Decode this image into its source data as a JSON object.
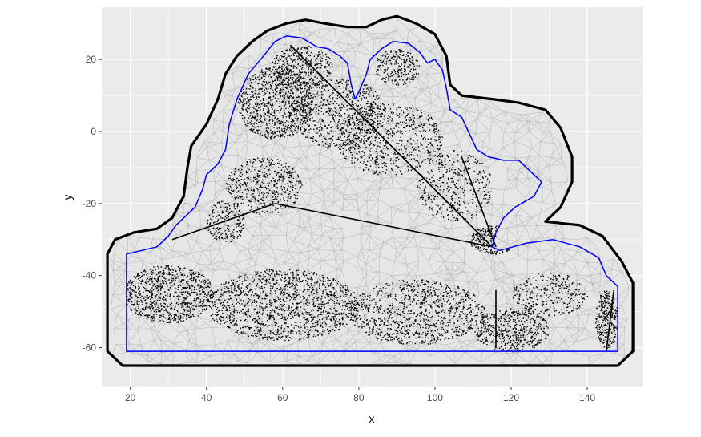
{
  "chart_data": {
    "type": "scatter",
    "title": "",
    "xlabel": "x",
    "ylabel": "y",
    "xlim": [
      12.5,
      154.5
    ],
    "ylim": [
      -71,
      34.5
    ],
    "x_ticks": [
      20,
      40,
      60,
      80,
      100,
      120,
      140
    ],
    "y_ticks": [
      20,
      0,
      -20,
      -40,
      -60
    ],
    "x_tick_labels": [
      "20",
      "40",
      "60",
      "80",
      "100",
      "120",
      "140"
    ],
    "y_tick_labels": [
      "20",
      "0",
      "-20",
      "-40",
      "-60"
    ],
    "grid": true,
    "legend": "none",
    "colors": {
      "panel": "#ebebeb",
      "grid": "#ffffff",
      "mesh_fill": "#e6e6e6",
      "mesh_edges": "#bdbdbd",
      "outer_boundary": "#000000",
      "inner_boundary": "#0000ff",
      "points": "#000000"
    },
    "layers": [
      {
        "name": "mesh",
        "kind": "triangulation"
      },
      {
        "name": "outer-boundary",
        "kind": "polygon",
        "color": "#000000"
      },
      {
        "name": "inner-boundary",
        "kind": "polygon",
        "color": "#0000ff"
      },
      {
        "name": "points",
        "kind": "scatter",
        "color": "#000000"
      }
    ],
    "outer_boundary": [
      [
        14,
        -61
      ],
      [
        14,
        -34
      ],
      [
        16,
        -30
      ],
      [
        21,
        -28
      ],
      [
        27,
        -27
      ],
      [
        31,
        -24
      ],
      [
        34,
        -18
      ],
      [
        35,
        -10
      ],
      [
        36,
        -4
      ],
      [
        40,
        2
      ],
      [
        43,
        9
      ],
      [
        45,
        16
      ],
      [
        48,
        21
      ],
      [
        52,
        25
      ],
      [
        56,
        28
      ],
      [
        61,
        30
      ],
      [
        66,
        31
      ],
      [
        71,
        30
      ],
      [
        77,
        29
      ],
      [
        82,
        29
      ],
      [
        86,
        31
      ],
      [
        90,
        32
      ],
      [
        95,
        30
      ],
      [
        100,
        27
      ],
      [
        103,
        21
      ],
      [
        104,
        13
      ],
      [
        107,
        10
      ],
      [
        115,
        9
      ],
      [
        122,
        8
      ],
      [
        129,
        6
      ],
      [
        133,
        1
      ],
      [
        136,
        -7
      ],
      [
        136,
        -14
      ],
      [
        133,
        -21
      ],
      [
        129,
        -25
      ],
      [
        138,
        -26
      ],
      [
        144,
        -29
      ],
      [
        149,
        -36
      ],
      [
        152,
        -42
      ],
      [
        152,
        -61
      ],
      [
        148,
        -65
      ],
      [
        18,
        -65
      ]
    ],
    "inner_boundary": [
      [
        19,
        -61
      ],
      [
        19,
        -34
      ],
      [
        23,
        -33
      ],
      [
        27,
        -32
      ],
      [
        30,
        -29
      ],
      [
        32,
        -26
      ],
      [
        37,
        -21
      ],
      [
        39,
        -16
      ],
      [
        40,
        -12
      ],
      [
        43,
        -9
      ],
      [
        45,
        -5
      ],
      [
        46,
        2
      ],
      [
        48,
        9
      ],
      [
        51,
        16
      ],
      [
        55,
        21
      ],
      [
        58,
        25
      ],
      [
        61,
        26.5
      ],
      [
        65,
        26
      ],
      [
        69,
        23.5
      ],
      [
        72,
        23
      ],
      [
        75,
        21
      ],
      [
        77,
        19
      ],
      [
        78,
        13
      ],
      [
        79,
        9
      ],
      [
        80,
        11
      ],
      [
        82,
        16
      ],
      [
        83,
        20
      ],
      [
        86,
        23
      ],
      [
        89,
        25
      ],
      [
        93,
        24.5
      ],
      [
        96,
        22
      ],
      [
        98,
        19
      ],
      [
        100,
        20
      ],
      [
        102,
        17
      ],
      [
        103,
        12
      ],
      [
        104,
        6
      ],
      [
        107,
        4
      ],
      [
        111,
        -5
      ],
      [
        114,
        -7
      ],
      [
        118,
        -8
      ],
      [
        122,
        -8
      ],
      [
        126,
        -12
      ],
      [
        128,
        -14
      ],
      [
        126,
        -18
      ],
      [
        121,
        -21
      ],
      [
        118,
        -24
      ],
      [
        116,
        -28
      ],
      [
        115,
        -32
      ],
      [
        117,
        -33
      ],
      [
        124,
        -31
      ],
      [
        131,
        -30
      ],
      [
        138,
        -32
      ],
      [
        143,
        -35
      ],
      [
        145,
        -40
      ],
      [
        148,
        -43
      ],
      [
        148,
        -61
      ]
    ]
  }
}
